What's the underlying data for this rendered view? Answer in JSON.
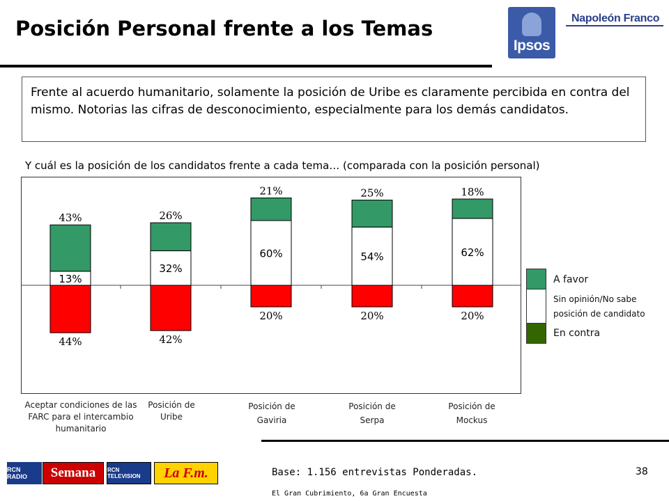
{
  "header": {
    "title": "Posición Personal frente a los Temas",
    "logo_ipsos": "Ipsos",
    "logo_napoleon": "Napoleón Franco"
  },
  "summary": "Frente al acuerdo humanitario, solamente la posición de Uribe es claramente percibida en contra del mismo. Notorias las cifras de desconocimiento, especialmente para los demás candidatos.",
  "colors": {
    "favor": "#339966",
    "neutral": "#ffffff",
    "contra": "#ff0000",
    "legend_contra": "#336600",
    "ipsos_blue": "#3b5aa8"
  },
  "chart_data": {
    "type": "bar",
    "title": "Y cuál es la posición de los candidatos frente a cada tema… (comparada con la posición personal)",
    "stacked": true,
    "diverging": true,
    "categories": [
      "Aceptar condiciones de las FARC para el intercambio humanitario",
      "Posición de Uribe",
      "Posición de Gaviria",
      "Posición de Serpa",
      "Posición de Mockus"
    ],
    "series": [
      {
        "name": "A favor",
        "values": [
          43,
          26,
          21,
          25,
          18
        ],
        "labels": [
          "43%",
          "26%",
          "21%",
          "25%",
          "18%"
        ]
      },
      {
        "name": "Sin opinión/No sabe posición de candidato",
        "values": [
          13,
          32,
          60,
          54,
          62
        ],
        "labels": [
          "13%",
          "32%",
          "60%",
          "54%",
          "62%"
        ]
      },
      {
        "name": "En contra",
        "values": [
          44,
          42,
          20,
          20,
          20
        ],
        "labels": [
          "44%",
          "42%",
          "20%",
          "20%",
          "20%"
        ]
      }
    ],
    "legend": [
      "A favor",
      "Sin opinión/No sabe",
      "posición de candidato",
      "En contra"
    ],
    "legend_position": "right",
    "grid": false
  },
  "footer": {
    "base": "Base: 1.156 entrevistas Ponderadas.",
    "page": "38",
    "source": "El Gran Cubrimiento, 6a Gran Encuesta",
    "media": [
      "RCN RADIO",
      "Semana",
      "RCN TELEVISION",
      "La F.m."
    ]
  }
}
